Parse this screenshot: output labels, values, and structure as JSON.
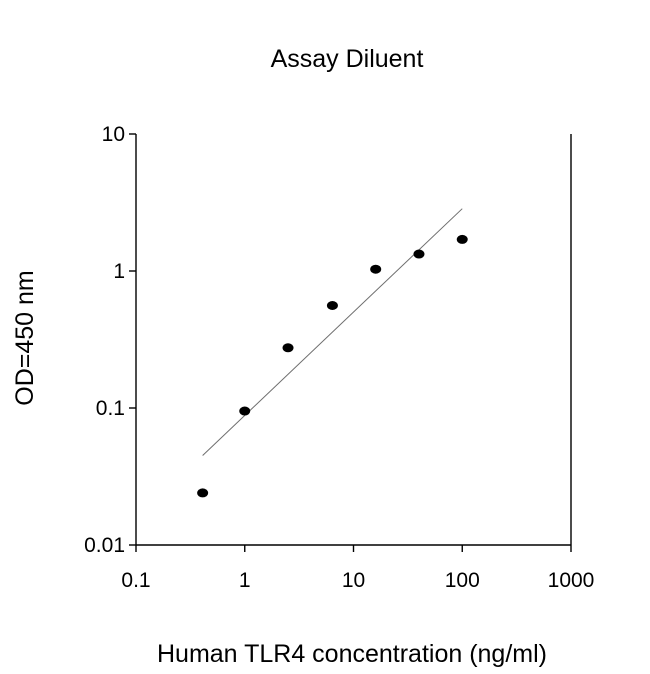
{
  "chart_data": {
    "type": "scatter",
    "title": "Assay Diluent",
    "xlabel": "Human  TLR4 concentration (ng/ml)",
    "ylabel": "OD=450 nm",
    "x_scale": "log",
    "y_scale": "log",
    "xlim": [
      0.1,
      1000
    ],
    "ylim": [
      0.01,
      10
    ],
    "x_ticks": [
      0.1,
      1,
      10,
      100,
      1000
    ],
    "x_tick_labels": [
      "0.1",
      "1",
      "10",
      "100",
      "1000"
    ],
    "y_ticks": [
      0.01,
      0.1,
      1,
      10
    ],
    "y_tick_labels": [
      "0.01",
      "0.1",
      "1",
      "10"
    ],
    "grid": false,
    "series": [
      {
        "points": [
          {
            "x": 0.41,
            "y": 0.024
          },
          {
            "x": 1.0,
            "y": 0.095
          },
          {
            "x": 2.5,
            "y": 0.275
          },
          {
            "x": 6.4,
            "y": 0.56
          },
          {
            "x": 16,
            "y": 1.03
          },
          {
            "x": 40,
            "y": 1.33
          },
          {
            "x": 100,
            "y": 1.7
          }
        ],
        "color": "#000000"
      }
    ],
    "fit_line": {
      "x": [
        0.41,
        100
      ],
      "y": [
        0.045,
        2.85
      ],
      "color": "#6e6e6e"
    }
  }
}
